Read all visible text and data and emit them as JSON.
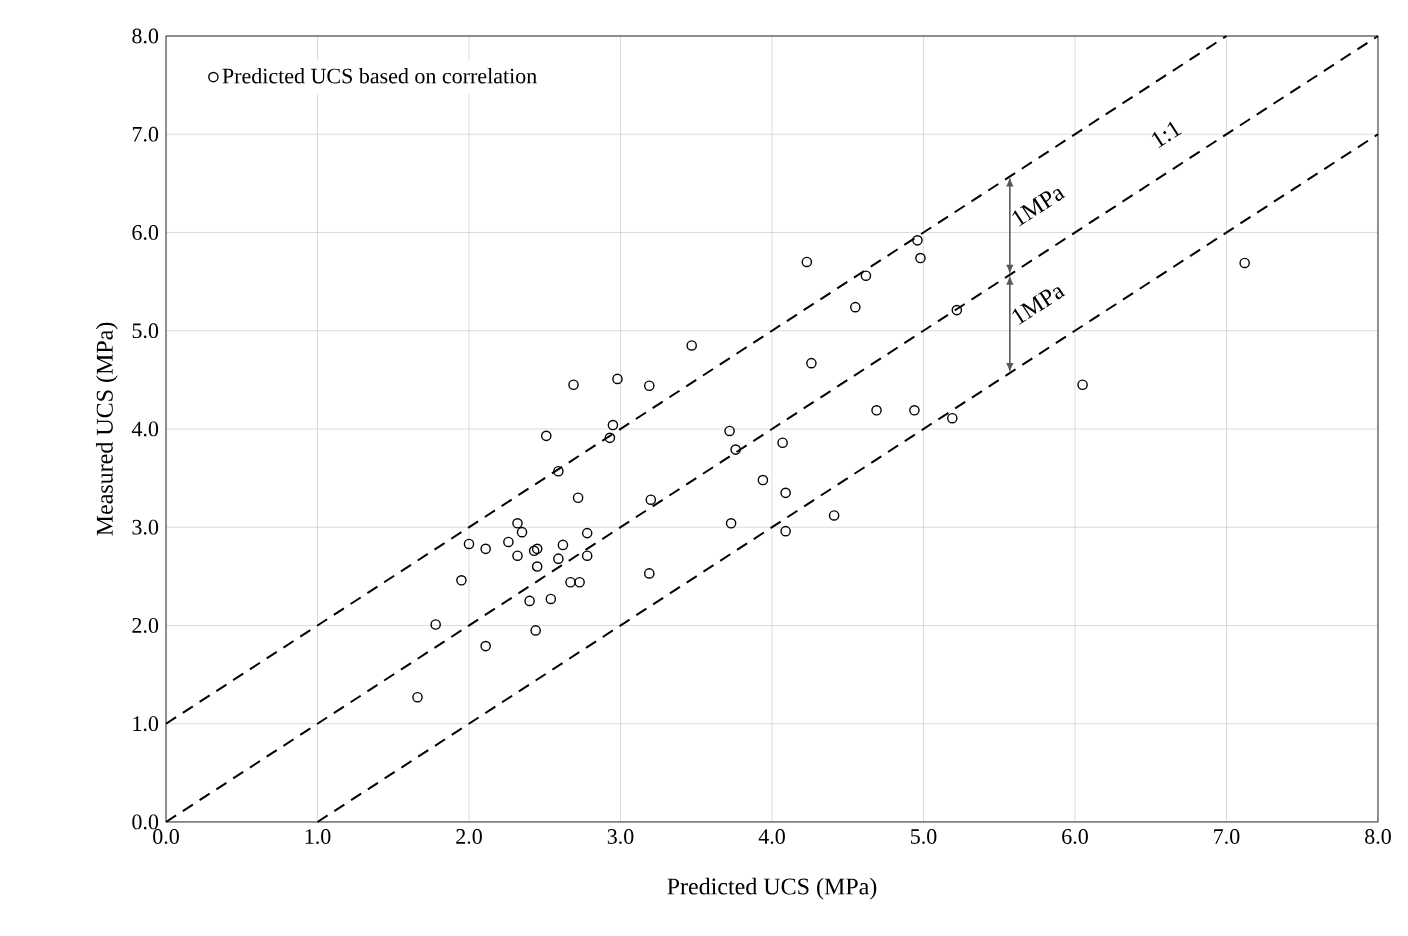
{
  "chart_data": {
    "type": "scatter",
    "xlabel": "Predicted UCS (MPa)",
    "ylabel": "Measured UCS (MPa)",
    "xlim": [
      0,
      8
    ],
    "ylim": [
      0,
      8
    ],
    "xticks": [
      {
        "value": 0,
        "label": "0.0"
      },
      {
        "value": 1,
        "label": "1.0"
      },
      {
        "value": 2,
        "label": "2.0"
      },
      {
        "value": 3,
        "label": "3.0"
      },
      {
        "value": 4,
        "label": "4.0"
      },
      {
        "value": 5,
        "label": "5.0"
      },
      {
        "value": 6,
        "label": "6.0"
      },
      {
        "value": 7,
        "label": "7.0"
      },
      {
        "value": 8,
        "label": "8.0"
      }
    ],
    "yticks": [
      {
        "value": 0,
        "label": "0.0"
      },
      {
        "value": 1,
        "label": "1.0"
      },
      {
        "value": 2,
        "label": "2.0"
      },
      {
        "value": 3,
        "label": "3.0"
      },
      {
        "value": 4,
        "label": "4.0"
      },
      {
        "value": 5,
        "label": "5.0"
      },
      {
        "value": 6,
        "label": "6.0"
      },
      {
        "value": 7,
        "label": "7.0"
      },
      {
        "value": 8,
        "label": "8.0"
      }
    ],
    "grid": true,
    "legend": "top left",
    "series": [
      {
        "name": "Predicted UCS based on correlation",
        "marker": "circle",
        "color": "#000000",
        "x": [
          1.66,
          1.78,
          1.95,
          2.0,
          2.11,
          2.11,
          2.26,
          2.32,
          2.35,
          2.32,
          2.4,
          2.43,
          2.45,
          2.45,
          2.44,
          2.51,
          2.54,
          2.59,
          2.59,
          2.62,
          2.67,
          2.73,
          2.69,
          2.72,
          2.78,
          2.78,
          2.93,
          2.95,
          2.98,
          3.19,
          3.2,
          3.19,
          3.47,
          3.72,
          3.76,
          3.73,
          3.94,
          4.07,
          4.09,
          4.09,
          4.23,
          4.26,
          4.41,
          4.55,
          4.62,
          4.69,
          4.94,
          4.96,
          4.98,
          5.19,
          5.22,
          6.05,
          7.12
        ],
        "values": [
          1.27,
          2.01,
          2.46,
          2.83,
          1.79,
          2.78,
          2.85,
          3.04,
          2.95,
          2.71,
          2.25,
          2.76,
          2.78,
          2.6,
          1.95,
          3.93,
          2.27,
          3.57,
          2.68,
          2.82,
          2.44,
          2.44,
          4.45,
          3.3,
          2.94,
          2.71,
          3.91,
          4.04,
          4.51,
          4.44,
          3.28,
          2.53,
          4.85,
          3.98,
          3.79,
          3.04,
          3.48,
          3.86,
          3.35,
          2.96,
          5.7,
          4.67,
          3.12,
          5.24,
          5.56,
          4.19,
          4.19,
          5.92,
          5.74,
          4.11,
          5.21,
          4.45,
          5.69
        ]
      },
      {
        "type": "line",
        "color": "#000000",
        "line_style": "dashed",
        "x": [
          0,
          7
        ],
        "values": [
          1,
          8
        ]
      },
      {
        "type": "line",
        "color": "#000000",
        "line_style": "dashed",
        "x": [
          0,
          8
        ],
        "values": [
          0,
          8
        ]
      },
      {
        "type": "line",
        "color": "#000000",
        "line_style": "dashed",
        "x": [
          1,
          8
        ],
        "values": [
          0,
          7
        ]
      }
    ],
    "annotations": [
      "1:1",
      {
        "text": "1MPa",
        "x": 5.57,
        "y": 6.57
      },
      {
        "text": "1MPa",
        "x": 5.57,
        "y": 4.57
      }
    ]
  }
}
